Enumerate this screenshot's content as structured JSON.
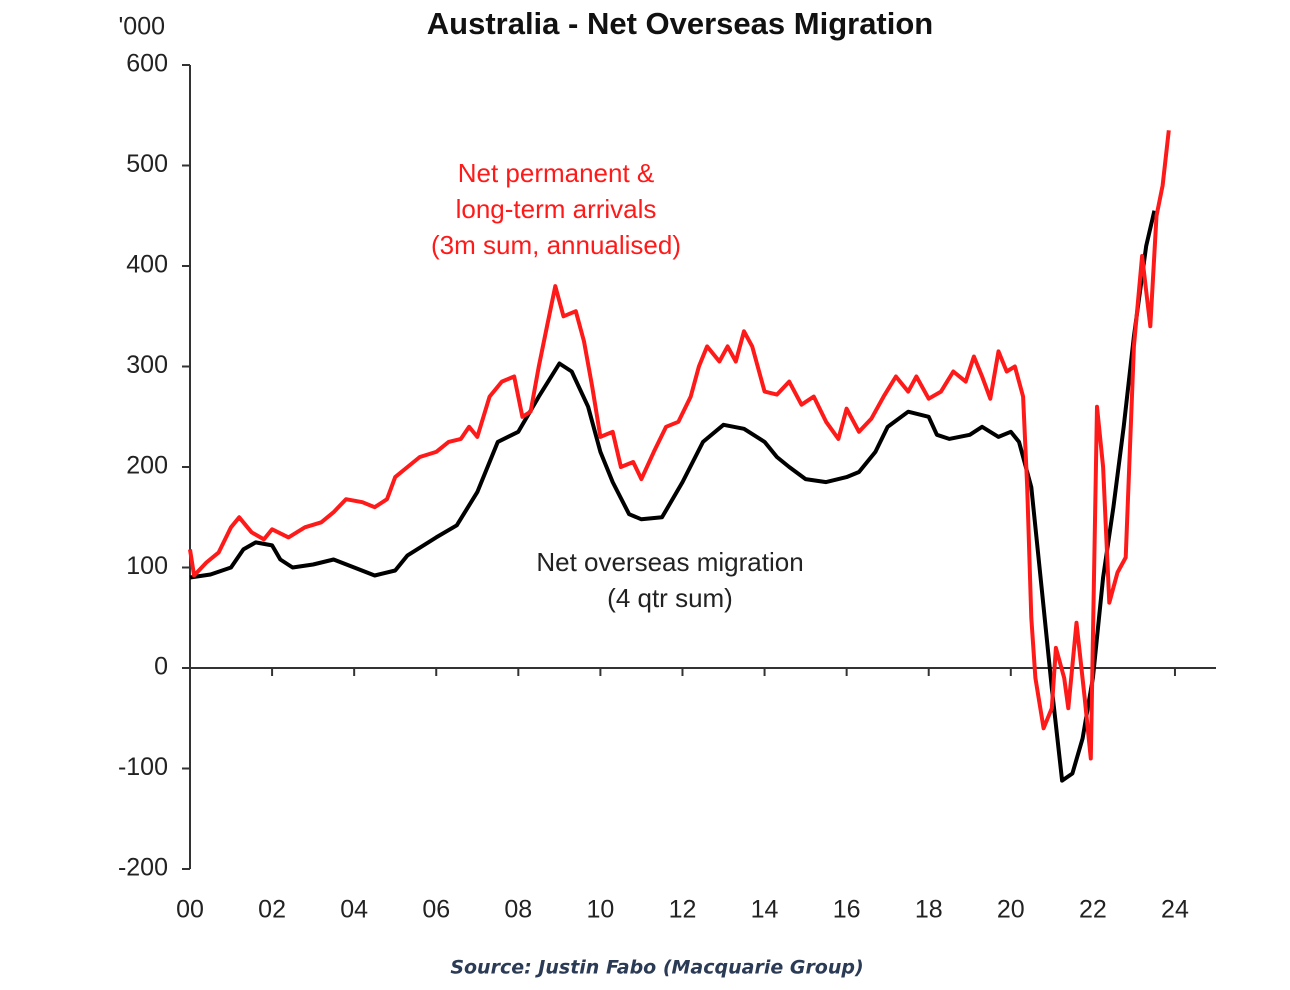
{
  "chart_data": {
    "type": "line",
    "title": "Australia - Net Overseas Migration",
    "y_unit": "'000",
    "source": "Source: Justin Fabo (Macquarie Group)",
    "annotations": [
      {
        "lines": [
          "Net permanent &",
          "long-term arrivals",
          "(3m sum, annualised)"
        ],
        "series": 1
      },
      {
        "lines": [
          "Net overseas migration",
          "(4 qtr sum)"
        ],
        "series": 0
      }
    ],
    "xlim": [
      2000,
      2025
    ],
    "ylim": [
      -200,
      600
    ],
    "yticks": [
      -200,
      -100,
      0,
      100,
      200,
      300,
      400,
      500,
      600
    ],
    "xticks": [
      {
        "value": 2000,
        "label": "00"
      },
      {
        "value": 2002,
        "label": "02"
      },
      {
        "value": 2004,
        "label": "04"
      },
      {
        "value": 2006,
        "label": "06"
      },
      {
        "value": 2008,
        "label": "08"
      },
      {
        "value": 2010,
        "label": "10"
      },
      {
        "value": 2012,
        "label": "12"
      },
      {
        "value": 2014,
        "label": "14"
      },
      {
        "value": 2016,
        "label": "16"
      },
      {
        "value": 2018,
        "label": "18"
      },
      {
        "value": 2020,
        "label": "20"
      },
      {
        "value": 2022,
        "label": "22"
      },
      {
        "value": 2024,
        "label": "24"
      }
    ],
    "series": [
      {
        "name": "Net overseas migration (4 qtr sum)",
        "color": "#000000",
        "x": [
          2000,
          2000.5,
          2001,
          2001.3,
          2001.6,
          2002,
          2002.2,
          2002.5,
          2003,
          2003.5,
          2004,
          2004.5,
          2005,
          2005.3,
          2006,
          2006.5,
          2007,
          2007.5,
          2008,
          2008.5,
          2009,
          2009.3,
          2009.7,
          2010,
          2010.3,
          2010.7,
          2011,
          2011.5,
          2012,
          2012.5,
          2013,
          2013.5,
          2014,
          2014.3,
          2014.6,
          2015,
          2015.5,
          2016,
          2016.3,
          2016.7,
          2017,
          2017.5,
          2018,
          2018.2,
          2018.5,
          2019,
          2019.3,
          2019.7,
          2020,
          2020.2,
          2020.5,
          2020.75,
          2021,
          2021.25,
          2021.5,
          2021.75,
          2022,
          2022.25,
          2022.5,
          2022.75,
          2023,
          2023.3,
          2023.5
        ],
        "values": [
          90,
          93,
          100,
          118,
          125,
          122,
          108,
          100,
          103,
          108,
          100,
          92,
          97,
          112,
          130,
          142,
          175,
          225,
          235,
          270,
          303,
          295,
          260,
          215,
          185,
          153,
          148,
          150,
          185,
          225,
          242,
          238,
          225,
          210,
          200,
          188,
          185,
          190,
          195,
          215,
          240,
          255,
          250,
          232,
          228,
          232,
          240,
          230,
          235,
          225,
          180,
          80,
          -20,
          -112,
          -105,
          -70,
          -10,
          90,
          160,
          240,
          330,
          420,
          455
        ]
      },
      {
        "name": "Net permanent & long-term arrivals (3m sum, annualised)",
        "color": "#ff1a1a",
        "x": [
          2000,
          2000.1,
          2000.4,
          2000.7,
          2001,
          2001.2,
          2001.5,
          2001.8,
          2002,
          2002.4,
          2002.8,
          2003.2,
          2003.5,
          2003.8,
          2004.2,
          2004.5,
          2004.8,
          2005,
          2005.3,
          2005.6,
          2006,
          2006.3,
          2006.6,
          2006.8,
          2007,
          2007.3,
          2007.6,
          2007.9,
          2008.1,
          2008.3,
          2008.5,
          2008.7,
          2008.9,
          2009.1,
          2009.4,
          2009.6,
          2009.8,
          2010,
          2010.3,
          2010.5,
          2010.8,
          2011,
          2011.3,
          2011.6,
          2011.9,
          2012.2,
          2012.4,
          2012.6,
          2012.9,
          2013.1,
          2013.3,
          2013.5,
          2013.7,
          2014,
          2014.3,
          2014.6,
          2014.9,
          2015.2,
          2015.5,
          2015.8,
          2016,
          2016.3,
          2016.6,
          2016.9,
          2017.2,
          2017.5,
          2017.7,
          2018,
          2018.3,
          2018.6,
          2018.9,
          2019.1,
          2019.3,
          2019.5,
          2019.7,
          2019.9,
          2020.1,
          2020.3,
          2020.4,
          2020.5,
          2020.6,
          2020.8,
          2021,
          2021.1,
          2021.3,
          2021.4,
          2021.6,
          2021.8,
          2021.95,
          2022.1,
          2022.25,
          2022.4,
          2022.6,
          2022.8,
          2023,
          2023.2,
          2023.4,
          2023.55,
          2023.7,
          2023.85
        ],
        "values": [
          118,
          92,
          105,
          115,
          140,
          150,
          135,
          128,
          138,
          130,
          140,
          145,
          155,
          168,
          165,
          160,
          168,
          190,
          200,
          210,
          215,
          225,
          228,
          240,
          230,
          270,
          285,
          290,
          250,
          255,
          300,
          340,
          380,
          350,
          355,
          325,
          280,
          230,
          235,
          200,
          205,
          188,
          215,
          240,
          245,
          270,
          300,
          320,
          305,
          320,
          305,
          335,
          320,
          275,
          272,
          285,
          262,
          270,
          245,
          228,
          258,
          235,
          248,
          270,
          290,
          275,
          290,
          268,
          275,
          295,
          285,
          310,
          290,
          268,
          315,
          295,
          300,
          270,
          180,
          50,
          -10,
          -60,
          -40,
          20,
          -10,
          -40,
          45,
          -30,
          -90,
          260,
          200,
          65,
          95,
          110,
          320,
          410,
          340,
          450,
          480,
          535
        ]
      }
    ]
  }
}
